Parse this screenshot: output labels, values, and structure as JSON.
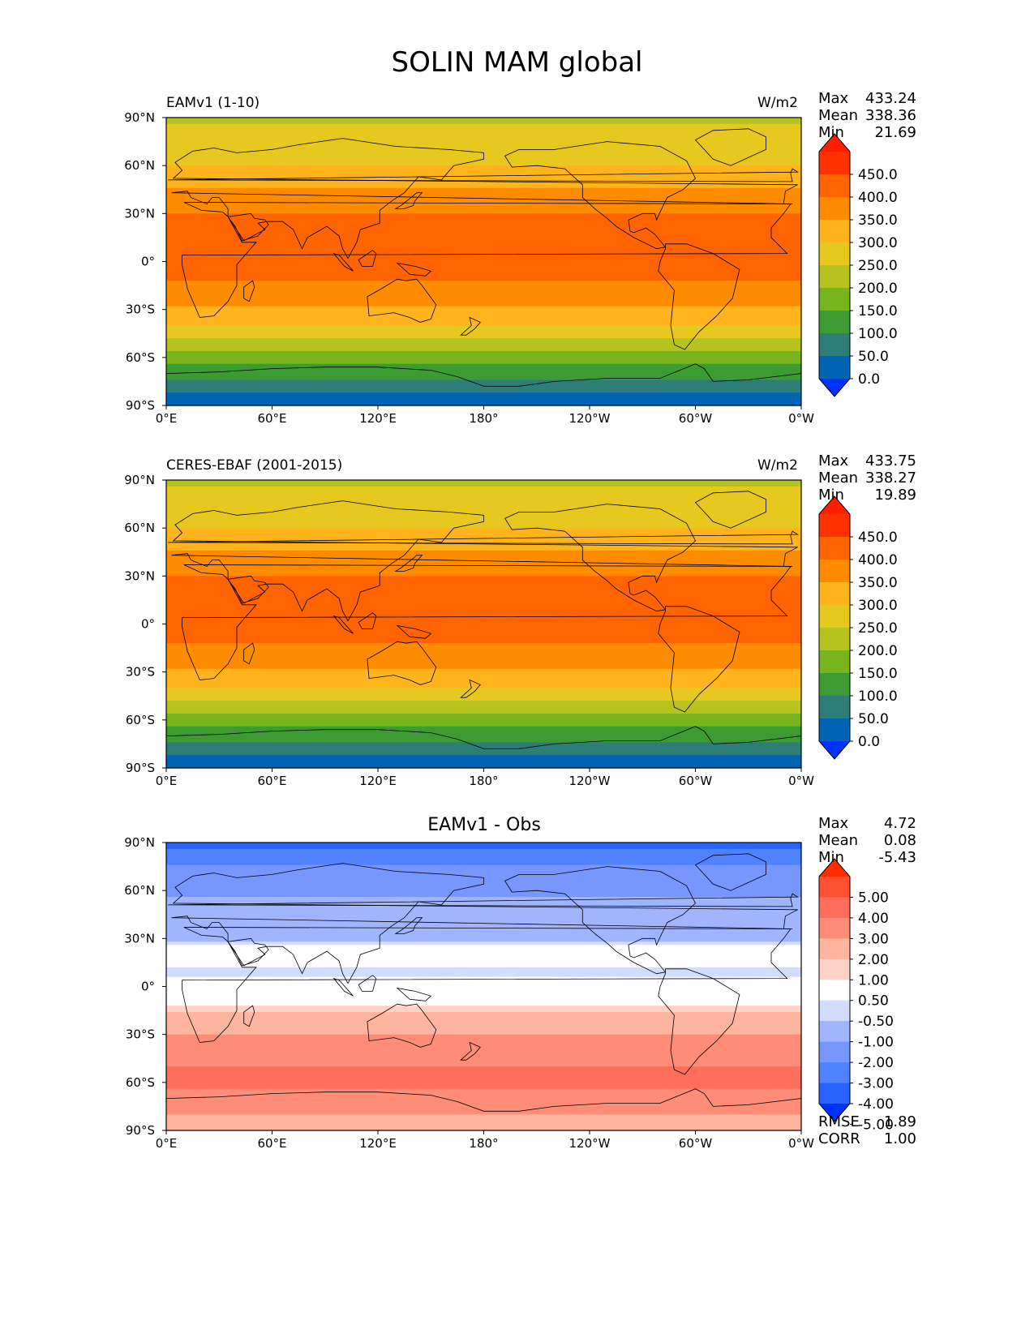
{
  "title": "SOLIN MAM global",
  "colors": {
    "abs_levels": [
      "#0032ff",
      "#0064b4",
      "#2d7d78",
      "#3c9b32",
      "#78b41e",
      "#b4c31e",
      "#e6c81e",
      "#ffb41e",
      "#ff8c00",
      "#ff6400",
      "#ff3200",
      "#ff1e00"
    ],
    "diff_levels": [
      "#0032ff",
      "#2864ff",
      "#5082ff",
      "#7896ff",
      "#a0b4ff",
      "#d2dcff",
      "#ffffff",
      "#ffd2c8",
      "#ffb4a0",
      "#ff8c78",
      "#ff6e5a",
      "#ff5032",
      "#ff2d00"
    ],
    "land_outline": "#000000"
  },
  "panels": [
    {
      "name": "panel-model",
      "left_title": "EAMv1 (1-10)",
      "center_title": "",
      "units": "W/m2",
      "stats": [
        {
          "label": "Max",
          "value": "433.24"
        },
        {
          "label": "Mean",
          "value": "338.36"
        },
        {
          "label": "Min",
          "value": "21.69"
        }
      ],
      "colorbar_labels": [
        "450.0",
        "400.0",
        "350.0",
        "300.0",
        "250.0",
        "200.0",
        "150.0",
        "100.0",
        "50.0",
        "0.0"
      ],
      "footer": []
    },
    {
      "name": "panel-obs",
      "left_title": "CERES-EBAF (2001-2015)",
      "center_title": "",
      "units": "W/m2",
      "stats": [
        {
          "label": "Max",
          "value": "433.75"
        },
        {
          "label": "Mean",
          "value": "338.27"
        },
        {
          "label": "Min",
          "value": "19.89"
        }
      ],
      "colorbar_labels": [
        "450.0",
        "400.0",
        "350.0",
        "300.0",
        "250.0",
        "200.0",
        "150.0",
        "100.0",
        "50.0",
        "0.0"
      ],
      "footer": []
    },
    {
      "name": "panel-diff",
      "left_title": "",
      "center_title": "EAMv1 - Obs",
      "units": "",
      "stats": [
        {
          "label": "Max",
          "value": "4.72"
        },
        {
          "label": "Mean",
          "value": "0.08"
        },
        {
          "label": "Min",
          "value": "-5.43"
        }
      ],
      "colorbar_labels": [
        "5.00",
        "4.00",
        "3.00",
        "2.00",
        "1.00",
        "0.50",
        "-0.50",
        "-1.00",
        "-2.00",
        "-3.00",
        "-4.00",
        "-5.00"
      ],
      "footer": [
        {
          "label": "RMSE",
          "value": "1.89"
        },
        {
          "label": "CORR",
          "value": "1.00"
        }
      ]
    }
  ],
  "axes": {
    "x_ticks": [
      "0°E",
      "60°E",
      "120°E",
      "180°",
      "120°W",
      "60°W",
      "0°W"
    ],
    "y_ticks": [
      "90°N",
      "60°N",
      "30°N",
      "0°",
      "30°S",
      "60°S",
      "90°S"
    ]
  },
  "chart_data": [
    {
      "type": "heatmap",
      "title": "EAMv1 (1-10)",
      "variable": "SOLIN",
      "units": "W/m2",
      "xlim": [
        0,
        360
      ],
      "ylim": [
        -90,
        90
      ],
      "levels": [
        0,
        50,
        100,
        150,
        200,
        250,
        300,
        350,
        400,
        450
      ],
      "zonal_profile": {
        "lat": [
          90,
          80,
          70,
          60,
          50,
          40,
          30,
          20,
          10,
          0,
          -10,
          -20,
          -30,
          -40,
          -50,
          -60,
          -70,
          -80,
          -90
        ],
        "value": [
          245,
          255,
          272,
          300,
          335,
          368,
          400,
          415,
          420,
          418,
          405,
          385,
          340,
          300,
          240,
          175,
          120,
          60,
          22
        ]
      },
      "stats": {
        "max": 433.24,
        "mean": 338.36,
        "min": 21.69
      }
    },
    {
      "type": "heatmap",
      "title": "CERES-EBAF (2001-2015)",
      "variable": "SOLIN",
      "units": "W/m2",
      "xlim": [
        0,
        360
      ],
      "ylim": [
        -90,
        90
      ],
      "levels": [
        0,
        50,
        100,
        150,
        200,
        250,
        300,
        350,
        400,
        450
      ],
      "zonal_profile": {
        "lat": [
          90,
          80,
          70,
          60,
          50,
          40,
          30,
          20,
          10,
          0,
          -10,
          -20,
          -30,
          -40,
          -50,
          -60,
          -70,
          -80,
          -90
        ],
        "value": [
          245,
          255,
          272,
          300,
          335,
          368,
          400,
          415,
          420,
          418,
          405,
          385,
          340,
          300,
          240,
          175,
          120,
          60,
          20
        ]
      },
      "stats": {
        "max": 433.75,
        "mean": 338.27,
        "min": 19.89
      }
    },
    {
      "type": "heatmap",
      "title": "EAMv1 - Obs",
      "variable": "SOLIN difference",
      "units": "W/m2",
      "xlim": [
        0,
        360
      ],
      "ylim": [
        -90,
        90
      ],
      "levels": [
        -5,
        -4,
        -3,
        -2,
        -1,
        -0.5,
        0.5,
        1,
        2,
        3,
        4,
        5
      ],
      "zonal_profile": {
        "lat": [
          90,
          80,
          70,
          60,
          50,
          40,
          30,
          20,
          10,
          0,
          -10,
          -20,
          -30,
          -40,
          -50,
          -60,
          -70,
          -80,
          -90
        ],
        "value": [
          -4.5,
          -3.5,
          -2.5,
          -2.2,
          -1.8,
          -1.5,
          -1.2,
          0.2,
          -0.8,
          0.1,
          0.3,
          1.5,
          2.0,
          2.5,
          3.0,
          3.2,
          2.6,
          2.0,
          1.5
        ]
      },
      "stats": {
        "max": 4.72,
        "mean": 0.08,
        "min": -5.43,
        "rmse": 1.89,
        "corr": 1.0
      }
    }
  ]
}
